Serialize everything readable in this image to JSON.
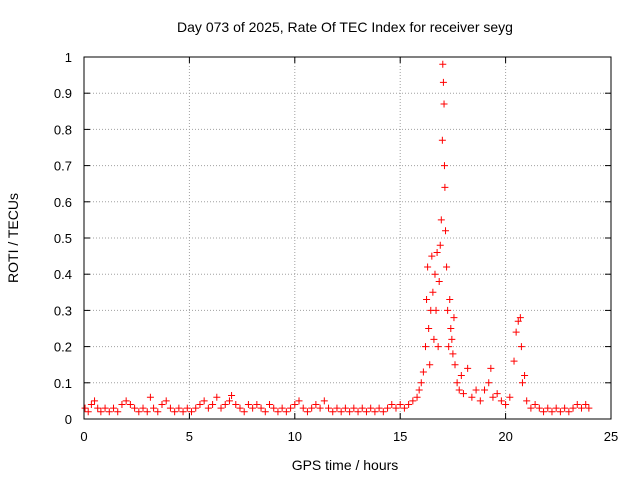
{
  "chart_data": {
    "type": "scatter",
    "title": "Day 073 of 2025, Rate Of TEC Index for receiver seyg",
    "xlabel": "GPS time / hours",
    "ylabel": "ROTI / TECUs",
    "xlim": [
      0,
      25
    ],
    "ylim": [
      0,
      1
    ],
    "xticks": [
      0,
      5,
      10,
      15,
      20,
      25
    ],
    "xtick_labels": [
      "0",
      "5",
      "10",
      "15",
      "20",
      "25"
    ],
    "yticks": [
      0,
      0.1,
      0.2,
      0.3,
      0.4,
      0.5,
      0.6,
      0.7,
      0.8,
      0.9,
      1
    ],
    "ytick_labels": [
      "0",
      "0.1",
      "0.2",
      "0.3",
      "0.4",
      "0.5",
      "0.6",
      "0.7",
      "0.8",
      "0.9",
      "1"
    ],
    "grid": true,
    "marker": "+",
    "color": "#ff0000",
    "points": [
      [
        0.05,
        0.03
      ],
      [
        0.2,
        0.02
      ],
      [
        0.35,
        0.04
      ],
      [
        0.5,
        0.05
      ],
      [
        0.65,
        0.03
      ],
      [
        0.8,
        0.02
      ],
      [
        1.0,
        0.03
      ],
      [
        1.2,
        0.02
      ],
      [
        1.4,
        0.03
      ],
      [
        1.6,
        0.02
      ],
      [
        1.8,
        0.04
      ],
      [
        2.0,
        0.05
      ],
      [
        2.2,
        0.04
      ],
      [
        2.4,
        0.03
      ],
      [
        2.6,
        0.02
      ],
      [
        2.8,
        0.03
      ],
      [
        3.0,
        0.02
      ],
      [
        3.15,
        0.06
      ],
      [
        3.3,
        0.03
      ],
      [
        3.5,
        0.02
      ],
      [
        3.7,
        0.04
      ],
      [
        3.9,
        0.05
      ],
      [
        4.1,
        0.03
      ],
      [
        4.3,
        0.02
      ],
      [
        4.5,
        0.03
      ],
      [
        4.7,
        0.02
      ],
      [
        4.9,
        0.03
      ],
      [
        5.1,
        0.02
      ],
      [
        5.3,
        0.03
      ],
      [
        5.5,
        0.04
      ],
      [
        5.7,
        0.05
      ],
      [
        5.9,
        0.03
      ],
      [
        6.1,
        0.04
      ],
      [
        6.3,
        0.06
      ],
      [
        6.5,
        0.03
      ],
      [
        6.7,
        0.04
      ],
      [
        6.9,
        0.05
      ],
      [
        7.0,
        0.065
      ],
      [
        7.2,
        0.04
      ],
      [
        7.4,
        0.03
      ],
      [
        7.6,
        0.02
      ],
      [
        7.8,
        0.04
      ],
      [
        8.0,
        0.03
      ],
      [
        8.2,
        0.04
      ],
      [
        8.4,
        0.03
      ],
      [
        8.6,
        0.02
      ],
      [
        8.8,
        0.04
      ],
      [
        9.0,
        0.03
      ],
      [
        9.2,
        0.02
      ],
      [
        9.4,
        0.03
      ],
      [
        9.6,
        0.02
      ],
      [
        9.8,
        0.03
      ],
      [
        10.0,
        0.04
      ],
      [
        10.2,
        0.05
      ],
      [
        10.4,
        0.03
      ],
      [
        10.6,
        0.02
      ],
      [
        10.8,
        0.03
      ],
      [
        11.0,
        0.04
      ],
      [
        11.2,
        0.03
      ],
      [
        11.4,
        0.05
      ],
      [
        11.6,
        0.03
      ],
      [
        11.8,
        0.02
      ],
      [
        12.0,
        0.03
      ],
      [
        12.2,
        0.02
      ],
      [
        12.4,
        0.03
      ],
      [
        12.6,
        0.02
      ],
      [
        12.8,
        0.03
      ],
      [
        13.0,
        0.02
      ],
      [
        13.2,
        0.03
      ],
      [
        13.4,
        0.02
      ],
      [
        13.6,
        0.03
      ],
      [
        13.8,
        0.02
      ],
      [
        14.0,
        0.03
      ],
      [
        14.2,
        0.02
      ],
      [
        14.4,
        0.03
      ],
      [
        14.6,
        0.04
      ],
      [
        14.8,
        0.03
      ],
      [
        15.0,
        0.04
      ],
      [
        15.2,
        0.03
      ],
      [
        15.4,
        0.04
      ],
      [
        15.6,
        0.05
      ],
      [
        15.8,
        0.06
      ],
      [
        15.9,
        0.08
      ],
      [
        16.0,
        0.1
      ],
      [
        16.1,
        0.13
      ],
      [
        16.2,
        0.2
      ],
      [
        16.25,
        0.33
      ],
      [
        16.3,
        0.42
      ],
      [
        16.35,
        0.25
      ],
      [
        16.4,
        0.15
      ],
      [
        16.45,
        0.3
      ],
      [
        16.5,
        0.45
      ],
      [
        16.55,
        0.35
      ],
      [
        16.6,
        0.22
      ],
      [
        16.65,
        0.4
      ],
      [
        16.7,
        0.3
      ],
      [
        16.75,
        0.46
      ],
      [
        16.8,
        0.2
      ],
      [
        16.85,
        0.38
      ],
      [
        16.9,
        0.48
      ],
      [
        16.95,
        0.55
      ],
      [
        17.0,
        0.77
      ],
      [
        17.02,
        0.98
      ],
      [
        17.05,
        0.93
      ],
      [
        17.08,
        0.87
      ],
      [
        17.1,
        0.7
      ],
      [
        17.12,
        0.64
      ],
      [
        17.15,
        0.52
      ],
      [
        17.2,
        0.42
      ],
      [
        17.25,
        0.3
      ],
      [
        17.3,
        0.2
      ],
      [
        17.35,
        0.33
      ],
      [
        17.4,
        0.25
      ],
      [
        17.45,
        0.22
      ],
      [
        17.5,
        0.18
      ],
      [
        17.55,
        0.28
      ],
      [
        17.6,
        0.15
      ],
      [
        17.7,
        0.1
      ],
      [
        17.8,
        0.08
      ],
      [
        17.9,
        0.12
      ],
      [
        18.0,
        0.07
      ],
      [
        18.2,
        0.14
      ],
      [
        18.4,
        0.06
      ],
      [
        18.6,
        0.08
      ],
      [
        18.8,
        0.05
      ],
      [
        19.0,
        0.08
      ],
      [
        19.2,
        0.1
      ],
      [
        19.3,
        0.14
      ],
      [
        19.4,
        0.06
      ],
      [
        19.6,
        0.07
      ],
      [
        19.8,
        0.05
      ],
      [
        20.0,
        0.04
      ],
      [
        20.2,
        0.06
      ],
      [
        20.4,
        0.16
      ],
      [
        20.5,
        0.24
      ],
      [
        20.6,
        0.27
      ],
      [
        20.7,
        0.28
      ],
      [
        20.75,
        0.2
      ],
      [
        20.8,
        0.1
      ],
      [
        20.9,
        0.12
      ],
      [
        21.0,
        0.05
      ],
      [
        21.2,
        0.03
      ],
      [
        21.4,
        0.04
      ],
      [
        21.6,
        0.03
      ],
      [
        21.8,
        0.02
      ],
      [
        22.0,
        0.03
      ],
      [
        22.2,
        0.02
      ],
      [
        22.4,
        0.03
      ],
      [
        22.6,
        0.02
      ],
      [
        22.8,
        0.03
      ],
      [
        23.0,
        0.02
      ],
      [
        23.2,
        0.03
      ],
      [
        23.4,
        0.04
      ],
      [
        23.6,
        0.03
      ],
      [
        23.8,
        0.04
      ],
      [
        23.95,
        0.03
      ]
    ]
  }
}
